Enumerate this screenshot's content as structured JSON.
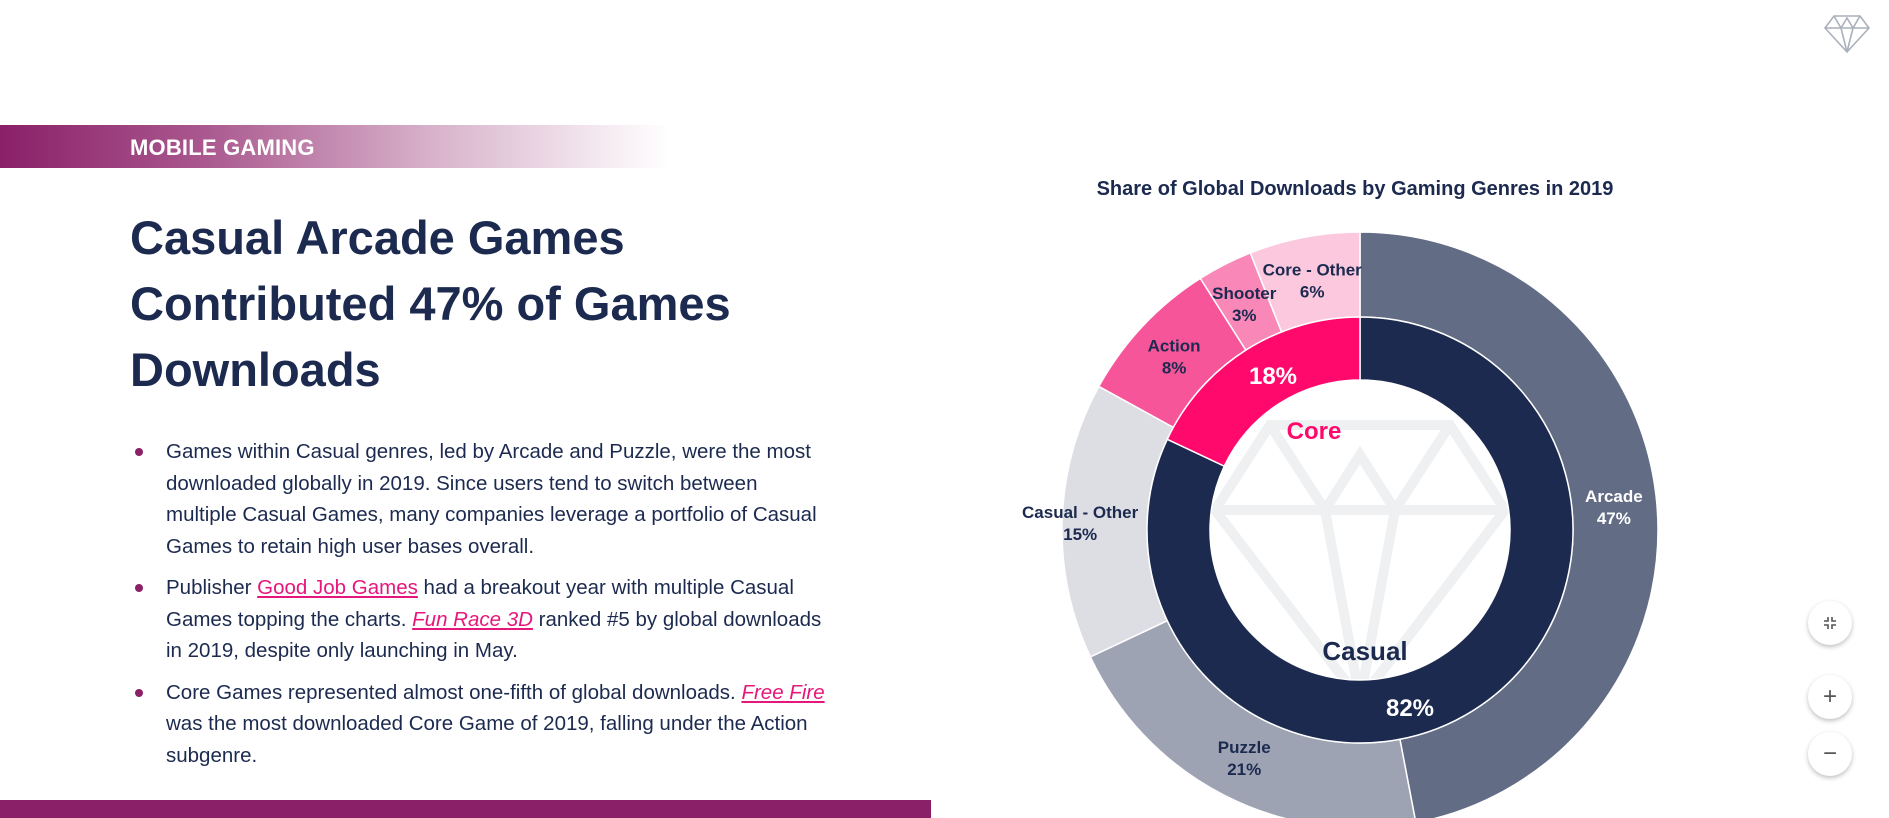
{
  "section_label": "MOBILE GAMING",
  "title": "Casual Arcade Games Contributed 47% of Games Downloads",
  "bullets": [
    {
      "parts": [
        {
          "text": "Games within Casual genres, led by Arcade and Puzzle, were the most downloaded globally in 2019. Since users tend to switch between multiple Casual Games, many companies leverage a portfolio of Casual Games to retain high user bases overall."
        }
      ]
    },
    {
      "parts": [
        {
          "text": "Publisher "
        },
        {
          "text": "Good Job Games",
          "link": true
        },
        {
          "text": " had a breakout year with multiple Casual Games topping the charts. "
        },
        {
          "text": "Fun Race 3D",
          "link": true,
          "italic": true
        },
        {
          "text": " ranked #5 by global downloads in 2019, despite only launching in May."
        }
      ]
    },
    {
      "parts": [
        {
          "text": "Core Games represented almost one-fifth of global downloads. "
        },
        {
          "text": "Free Fire",
          "link": true,
          "italic": true
        },
        {
          "text": " was the most downloaded Core Game of 2019, falling under the Action subgenre."
        }
      ]
    }
  ],
  "controls": {
    "collapse_icon": "collapse-icon",
    "zoom_in": "+",
    "zoom_out": "−"
  },
  "chart_data": {
    "type": "pie",
    "title": "Share of Global Downloads by Gaming Genres in 2019",
    "inner": [
      {
        "name": "Casual",
        "value": 82,
        "label": "82%",
        "color": "#1c2a4f",
        "text_color": "#ffffff",
        "name_color": "#1c2a4f"
      },
      {
        "name": "Core",
        "value": 18,
        "label": "18%",
        "color": "#ff0a6c",
        "text_color": "#ffffff",
        "name_color": "#ff0a6c"
      }
    ],
    "outer": [
      {
        "name": "Arcade",
        "value": 47,
        "label": "47%",
        "color": "#626c85",
        "text_color": "#ffffff"
      },
      {
        "name": "Puzzle",
        "value": 21,
        "label": "21%",
        "color": "#9ea3b3",
        "text_color": "#1c2a4f"
      },
      {
        "name": "Casual - Other",
        "value": 15,
        "label": "15%",
        "color": "#dcdee4",
        "text_color": "#1c2a4f"
      },
      {
        "name": "Action",
        "value": 8,
        "label": "8%",
        "color": "#f7559a",
        "text_color": "#1c2a4f"
      },
      {
        "name": "Shooter",
        "value": 3,
        "label": "3%",
        "color": "#f987b8",
        "text_color": "#1c2a4f"
      },
      {
        "name": "Core - Other",
        "value": 6,
        "label": "6%",
        "color": "#fbc8de",
        "text_color": "#1c2a4f"
      }
    ]
  }
}
